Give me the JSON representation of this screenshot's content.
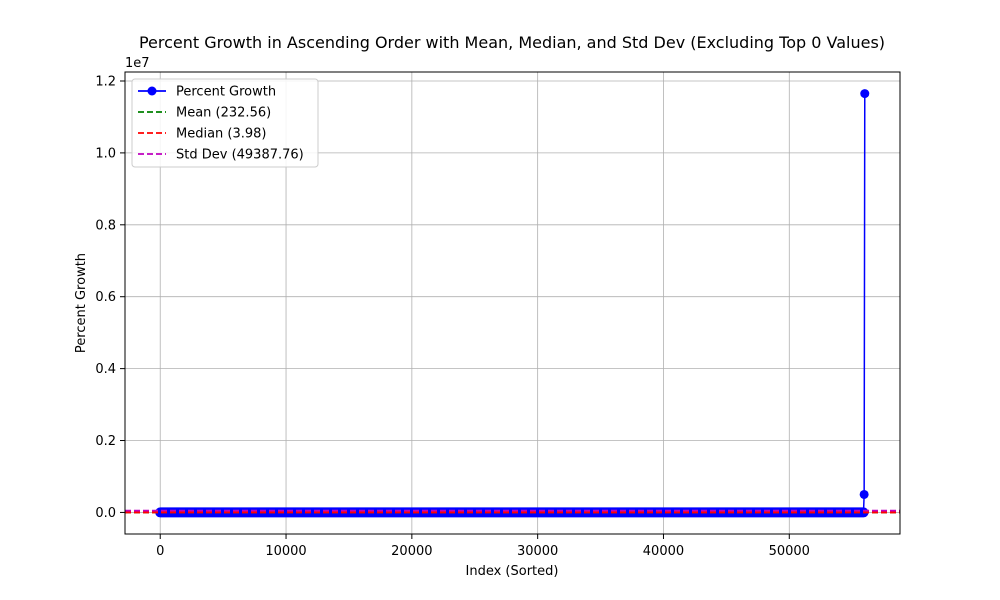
{
  "chart_data": {
    "type": "line",
    "title": "Percent Growth in Ascending Order with Mean, Median, and Std Dev (Excluding Top 0 Values)",
    "xlabel": "Index (Sorted)",
    "ylabel": "Percent Growth",
    "y_offset_label": "1e7",
    "xlim": [
      -2800,
      58800
    ],
    "ylim": [
      -600000,
      12250000
    ],
    "x_ticks": [
      0,
      10000,
      20000,
      30000,
      40000,
      50000
    ],
    "x_tick_labels": [
      "0",
      "10000",
      "20000",
      "30000",
      "40000",
      "50000"
    ],
    "y_ticks": [
      0,
      2000000,
      4000000,
      6000000,
      8000000,
      10000000,
      12000000
    ],
    "y_tick_labels": [
      "0.0",
      "0.2",
      "0.4",
      "0.6",
      "0.8",
      "1.0",
      "1.2"
    ],
    "grid": true,
    "legend_position": "top-left",
    "series": [
      {
        "name": "Percent Growth",
        "color": "#0000ff",
        "style": "solid-with-markers",
        "x": [
          0,
          55900,
          55950,
          56000
        ],
        "y": [
          0,
          0,
          500000,
          11650000
        ]
      }
    ],
    "reference_lines": [
      {
        "name": "Mean (232.56)",
        "value": 232.56,
        "color": "#008000",
        "style": "dashed"
      },
      {
        "name": "Median (3.98)",
        "value": 3.98,
        "color": "#ff0000",
        "style": "dashed"
      },
      {
        "name": "Std Dev (49387.76)",
        "value": 49387.76,
        "color": "#bf00bf",
        "style": "dashed"
      }
    ]
  }
}
